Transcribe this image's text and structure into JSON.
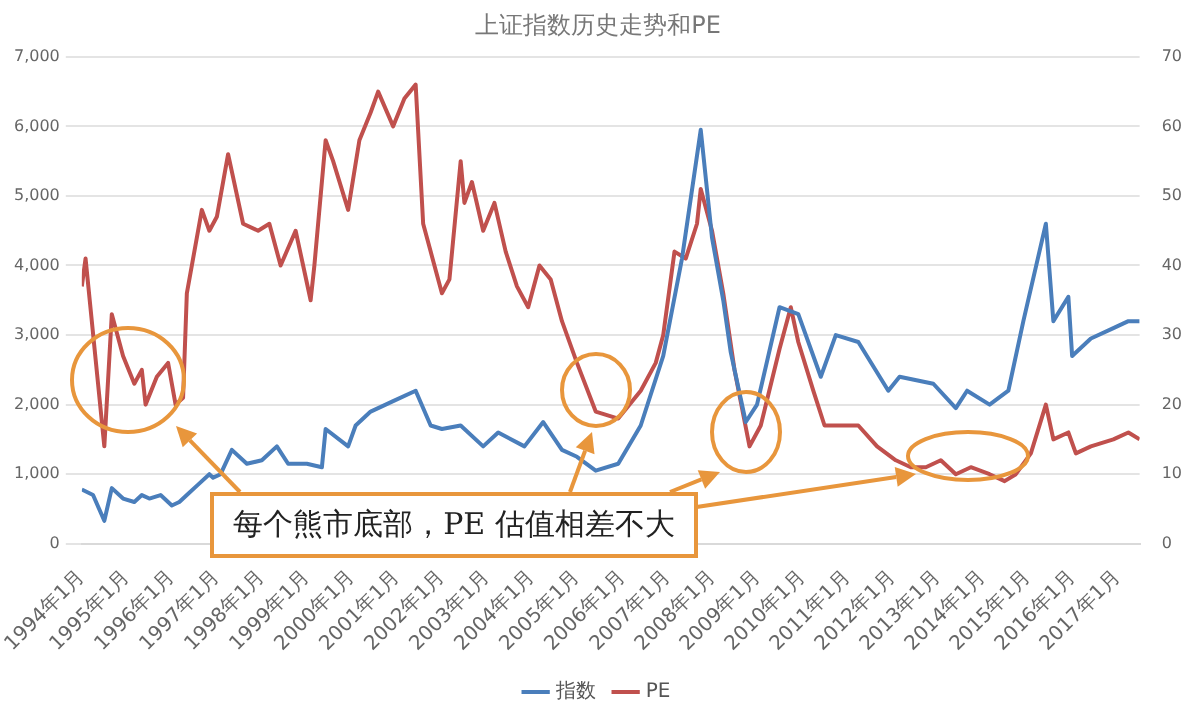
{
  "chart_data": {
    "type": "line",
    "title": "上证指数历史走势和PE",
    "xlim": [
      "1994-01",
      "2017-07"
    ],
    "xticks": [
      {
        "value": "1994-01",
        "label": "1994年1月"
      },
      {
        "value": "1995-01",
        "label": "1995年1月"
      },
      {
        "value": "1996-01",
        "label": "1996年1月"
      },
      {
        "value": "1997-01",
        "label": "1997年1月"
      },
      {
        "value": "1998-01",
        "label": "1998年1月"
      },
      {
        "value": "1999-01",
        "label": "1999年1月"
      },
      {
        "value": "2000-01",
        "label": "2000年1月"
      },
      {
        "value": "2001-01",
        "label": "2001年1月"
      },
      {
        "value": "2002-01",
        "label": "2002年1月"
      },
      {
        "value": "2003-01",
        "label": "2003年1月"
      },
      {
        "value": "2004-01",
        "label": "2004年1月"
      },
      {
        "value": "2005-01",
        "label": "2005年1月"
      },
      {
        "value": "2006-01",
        "label": "2006年1月"
      },
      {
        "value": "2007-01",
        "label": "2007年1月"
      },
      {
        "value": "2008-01",
        "label": "2008年1月"
      },
      {
        "value": "2009-01",
        "label": "2009年1月"
      },
      {
        "value": "2010-01",
        "label": "2010年1月"
      },
      {
        "value": "2011-01",
        "label": "2011年1月"
      },
      {
        "value": "2012-01",
        "label": "2012年1月"
      },
      {
        "value": "2013-01",
        "label": "2013年1月"
      },
      {
        "value": "2014-01",
        "label": "2014年1月"
      },
      {
        "value": "2015-01",
        "label": "2015年1月"
      },
      {
        "value": "2016-01",
        "label": "2016年1月"
      },
      {
        "value": "2017-01",
        "label": "2017年1月"
      }
    ],
    "ylim": [
      0,
      7000
    ],
    "yticks": [
      0,
      {
        "value": 1000,
        "label": "1,000"
      },
      {
        "value": 2000,
        "label": "2,000"
      },
      {
        "value": 3000,
        "label": "3,000"
      },
      {
        "value": 4000,
        "label": "4,000"
      },
      {
        "value": 5000,
        "label": "5,000"
      },
      {
        "value": 6000,
        "label": "6,000"
      },
      {
        "value": 7000,
        "label": "7,000"
      }
    ],
    "y2lim": [
      0,
      70
    ],
    "y2ticks": [
      0,
      10,
      20,
      30,
      40,
      50,
      60,
      70
    ],
    "grid": "y",
    "legend": "bottom",
    "annotations": [
      "每个熊市底部，PE 估值相差不大"
    ],
    "series": [
      {
        "name": "指数",
        "color": "#4a7ebb",
        "x": [
          "1994-01",
          "1994-04",
          "1994-07",
          "1994-09",
          "1994-12",
          "1995-03",
          "1995-05",
          "1995-07",
          "1995-10",
          "1996-01",
          "1996-03",
          "1996-05",
          "1996-08",
          "1996-11",
          "1996-12",
          "1997-02",
          "1997-05",
          "1997-09",
          "1998-01",
          "1998-05",
          "1998-08",
          "1999-01",
          "1999-05",
          "1999-06",
          "1999-12",
          "2000-02",
          "2000-06",
          "2000-12",
          "2001-06",
          "2001-10",
          "2002-01",
          "2002-06",
          "2002-12",
          "2003-04",
          "2003-11",
          "2004-04",
          "2004-09",
          "2005-01",
          "2005-06",
          "2005-12",
          "2006-06",
          "2006-12",
          "2007-05",
          "2007-10",
          "2008-01",
          "2008-04",
          "2008-06",
          "2008-10",
          "2009-01",
          "2009-07",
          "2009-12",
          "2010-06",
          "2010-10",
          "2011-04",
          "2011-12",
          "2012-03",
          "2012-12",
          "2013-06",
          "2013-09",
          "2014-03",
          "2014-08",
          "2014-12",
          "2015-06",
          "2015-08",
          "2015-12",
          "2016-01",
          "2016-06",
          "2016-12",
          "2017-04",
          "2017-07"
        ],
        "values": [
          780,
          700,
          330,
          800,
          650,
          600,
          700,
          650,
          700,
          550,
          600,
          700,
          850,
          1000,
          950,
          1000,
          1350,
          1150,
          1200,
          1400,
          1150,
          1150,
          1100,
          1650,
          1400,
          1700,
          1900,
          2050,
          2200,
          1700,
          1650,
          1700,
          1400,
          1600,
          1400,
          1750,
          1350,
          1250,
          1050,
          1150,
          1700,
          2700,
          4100,
          5950,
          4400,
          3500,
          2750,
          1750,
          2000,
          3400,
          3300,
          2400,
          3000,
          2900,
          2200,
          2400,
          2300,
          1950,
          2200,
          2000,
          2200,
          3200,
          4600,
          3200,
          3550,
          2700,
          2950,
          3100,
          3200,
          3200
        ]
      },
      {
        "name": "PE",
        "color": "#c0504d",
        "axis": "y2",
        "x": [
          "1994-01",
          "1994-02",
          "1994-07",
          "1994-09",
          "1994-12",
          "1995-03",
          "1995-05",
          "1995-06",
          "1995-09",
          "1995-12",
          "1996-02",
          "1996-04",
          "1996-05",
          "1996-09",
          "1996-11",
          "1997-01",
          "1997-04",
          "1997-08",
          "1997-12",
          "1998-03",
          "1998-06",
          "1998-10",
          "1999-02",
          "1999-03",
          "1999-06",
          "1999-08",
          "1999-12",
          "2000-03",
          "2000-06",
          "2000-08",
          "2000-12",
          "2001-03",
          "2001-06",
          "2001-08",
          "2001-10",
          "2002-01",
          "2002-03",
          "2002-06",
          "2002-07",
          "2002-09",
          "2002-12",
          "2003-03",
          "2003-06",
          "2003-09",
          "2003-12",
          "2004-03",
          "2004-06",
          "2004-09",
          "2005-01",
          "2005-06",
          "2005-12",
          "2006-06",
          "2006-10",
          "2006-12",
          "2007-03",
          "2007-06",
          "2007-09",
          "2007-10",
          "2008-01",
          "2008-04",
          "2008-07",
          "2008-11",
          "2009-02",
          "2009-07",
          "2009-10",
          "2009-12",
          "2010-04",
          "2010-07",
          "2010-12",
          "2011-04",
          "2011-09",
          "2012-02",
          "2012-06",
          "2012-10",
          "2013-02",
          "2013-06",
          "2013-10",
          "2014-03",
          "2014-07",
          "2014-10",
          "2015-02",
          "2015-06",
          "2015-08",
          "2015-12",
          "2016-02",
          "2016-06",
          "2016-12",
          "2017-04",
          "2017-07"
        ],
        "values": [
          37,
          41,
          14,
          33,
          27,
          23,
          25,
          20,
          24,
          26,
          20,
          21,
          36,
          48,
          45,
          47,
          56,
          46,
          45,
          46,
          40,
          45,
          35,
          40,
          58,
          55,
          48,
          58,
          62,
          65,
          60,
          64,
          66,
          46,
          42,
          36,
          38,
          55,
          49,
          52,
          45,
          49,
          42,
          37,
          34,
          40,
          38,
          32,
          26,
          19,
          18,
          22,
          26,
          30,
          42,
          41,
          46,
          51,
          45,
          36,
          25,
          14,
          17,
          28,
          34,
          29,
          22,
          17,
          17,
          17,
          14,
          12,
          11,
          11,
          12,
          10,
          11,
          10,
          9,
          10,
          13,
          20,
          15,
          16,
          13,
          14,
          15,
          16,
          15
        ]
      }
    ]
  }
}
